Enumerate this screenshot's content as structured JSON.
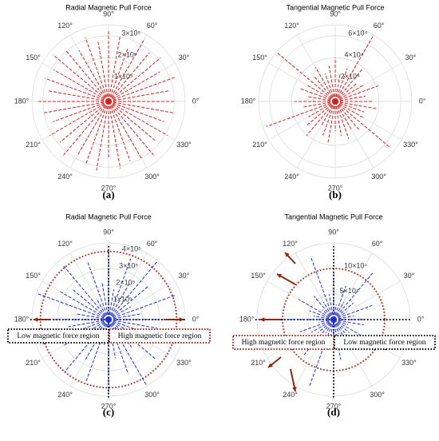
{
  "chart_data": [
    {
      "type": "polar",
      "title": "Radial Magnetic Pull Force",
      "panel_label": "(a)",
      "color": "#d62020",
      "rlim": [
        0,
        350000
      ],
      "rticks": [
        {
          "value": 100000,
          "label": "1×10⁵"
        },
        {
          "value": 200000,
          "label": "2×10⁵"
        },
        {
          "value": 300000,
          "label": "3×10⁵"
        }
      ],
      "thetaticks": [
        {
          "value": 0,
          "label": "0°"
        },
        {
          "value": 30,
          "label": "30°"
        },
        {
          "value": 60,
          "label": "60°"
        },
        {
          "value": 90,
          "label": "90°"
        },
        {
          "value": 120,
          "label": "120°"
        },
        {
          "value": 150,
          "label": "150°"
        },
        {
          "value": 180,
          "label": "180°"
        },
        {
          "value": 210,
          "label": "210°"
        },
        {
          "value": 240,
          "label": "240°"
        },
        {
          "value": 270,
          "label": "270°"
        },
        {
          "value": 300,
          "label": "300°"
        },
        {
          "value": 330,
          "label": "330°"
        }
      ],
      "theta": [
        0,
        10,
        20,
        30,
        40,
        50,
        60,
        70,
        80,
        90,
        100,
        110,
        120,
        130,
        140,
        150,
        160,
        170,
        180,
        190,
        200,
        210,
        220,
        230,
        240,
        250,
        260,
        270,
        280,
        290,
        300,
        310,
        320,
        330,
        340,
        350
      ],
      "r": [
        300000,
        280000,
        320000,
        270000,
        310000,
        290000,
        330000,
        260000,
        300000,
        320000,
        280000,
        310000,
        270000,
        300000,
        330000,
        290000,
        310000,
        280000,
        320000,
        300000,
        270000,
        310000,
        290000,
        330000,
        280000,
        300000,
        320000,
        260000,
        310000,
        290000,
        300000,
        320000,
        280000,
        310000,
        270000,
        300000
      ]
    },
    {
      "type": "polar",
      "title": "Tangential Magnetic Pull Force",
      "panel_label": "(b)",
      "color": "#d62020",
      "rlim": [
        0,
        70000
      ],
      "rticks": [
        {
          "value": 20000,
          "label": "2×10⁴"
        },
        {
          "value": 40000,
          "label": "4×10⁴"
        },
        {
          "value": 60000,
          "label": "6×10⁴"
        }
      ],
      "thetaticks": [
        {
          "value": 0,
          "label": "0°"
        },
        {
          "value": 30,
          "label": "30°"
        },
        {
          "value": 60,
          "label": "60°"
        },
        {
          "value": 90,
          "label": "90°"
        },
        {
          "value": 120,
          "label": "120°"
        },
        {
          "value": 150,
          "label": "150°"
        },
        {
          "value": 180,
          "label": "180°"
        },
        {
          "value": 210,
          "label": "210°"
        },
        {
          "value": 240,
          "label": "240°"
        },
        {
          "value": 270,
          "label": "270°"
        },
        {
          "value": 300,
          "label": "300°"
        },
        {
          "value": 330,
          "label": "330°"
        }
      ],
      "theta": [
        0,
        10,
        20,
        30,
        40,
        50,
        60,
        70,
        80,
        90,
        100,
        110,
        120,
        130,
        140,
        150,
        160,
        170,
        180,
        190,
        200,
        210,
        220,
        230,
        240,
        250,
        260,
        270,
        280,
        290,
        300,
        310,
        320,
        330,
        340,
        350
      ],
      "r": [
        35000,
        28000,
        42000,
        30000,
        25000,
        38000,
        68000,
        32000,
        26000,
        40000,
        33000,
        27000,
        36000,
        31000,
        69000,
        29000,
        34000,
        25000,
        37000,
        30000,
        67000,
        28000,
        35000,
        41000,
        26000,
        33000,
        39000,
        27000,
        32000,
        36000,
        29000,
        34000,
        66000,
        30000,
        28000,
        38000
      ]
    },
    {
      "type": "polar",
      "title": "Radial Magnetic Pull Force",
      "panel_label": "(c)",
      "color": "#2030d0",
      "rlim": [
        0,
        450000
      ],
      "rticks": [
        {
          "value": 100000,
          "label": "1×10⁵"
        },
        {
          "value": 200000,
          "label": "2×10⁵"
        },
        {
          "value": 300000,
          "label": "3×10⁵"
        },
        {
          "value": 400000,
          "label": "4×10⁵"
        }
      ],
      "thetaticks": [
        {
          "value": 0,
          "label": "0°"
        },
        {
          "value": 30,
          "label": "30°"
        },
        {
          "value": 60,
          "label": "60°"
        },
        {
          "value": 90,
          "label": "90°"
        },
        {
          "value": 120,
          "label": "120°"
        },
        {
          "value": 150,
          "label": "150°"
        },
        {
          "value": 180,
          "label": "180°"
        },
        {
          "value": 210,
          "label": "210°"
        },
        {
          "value": 240,
          "label": "240°"
        },
        {
          "value": 270,
          "label": "270°"
        },
        {
          "value": 300,
          "label": "300°"
        },
        {
          "value": 330,
          "label": "330°"
        }
      ],
      "theta": [
        0,
        10,
        20,
        30,
        40,
        50,
        60,
        70,
        80,
        90,
        100,
        110,
        120,
        130,
        140,
        150,
        160,
        170,
        180,
        190,
        200,
        210,
        220,
        230,
        240,
        250,
        260,
        270,
        280,
        290,
        300,
        310,
        320,
        330,
        340,
        350
      ],
      "r": [
        350000,
        200000,
        420000,
        150000,
        300000,
        440000,
        250000,
        380000,
        180000,
        430000,
        220000,
        360000,
        140000,
        410000,
        280000,
        330000,
        440000,
        190000,
        370000,
        240000,
        420000,
        310000,
        160000,
        400000,
        270000,
        390000,
        150000,
        430000,
        230000,
        340000,
        440000,
        210000,
        360000,
        170000,
        410000,
        290000
      ],
      "reference_circle": 400000,
      "regions": [
        {
          "label": "Low magnetic force region",
          "side": "left",
          "color": "#000000"
        },
        {
          "label": "High magnetic force region",
          "side": "right",
          "color": "#a0281e"
        }
      ]
    },
    {
      "type": "polar",
      "title": "Tangential Magnetic Pull Force",
      "panel_label": "(d)",
      "color": "#2030d0",
      "rlim": [
        0,
        150000
      ],
      "rticks": [
        {
          "value": 50000,
          "label": "5×10⁴"
        },
        {
          "value": 100000,
          "label": "10×10⁴"
        }
      ],
      "thetaticks": [
        {
          "value": 0,
          "label": "0°"
        },
        {
          "value": 30,
          "label": "30°"
        },
        {
          "value": 60,
          "label": "60°"
        },
        {
          "value": 90,
          "label": "90°"
        },
        {
          "value": 120,
          "label": "120°"
        },
        {
          "value": 150,
          "label": "150°"
        },
        {
          "value": 180,
          "label": "180°"
        },
        {
          "value": 210,
          "label": "210°"
        },
        {
          "value": 240,
          "label": "240°"
        },
        {
          "value": 270,
          "label": "270°"
        },
        {
          "value": 300,
          "label": "300°"
        },
        {
          "value": 330,
          "label": "330°"
        }
      ],
      "theta": [
        0,
        10,
        20,
        30,
        40,
        50,
        60,
        70,
        80,
        90,
        100,
        110,
        120,
        130,
        140,
        150,
        160,
        170,
        180,
        190,
        200,
        210,
        220,
        230,
        240,
        250,
        260,
        270,
        280,
        290,
        300,
        310,
        320,
        330,
        340,
        350
      ],
      "r": [
        60000,
        40000,
        80000,
        30000,
        50000,
        120000,
        40000,
        70000,
        30000,
        90000,
        50000,
        130000,
        40000,
        60000,
        30000,
        80000,
        50000,
        40000,
        110000,
        30000,
        70000,
        50000,
        40000,
        90000,
        30000,
        140000,
        60000,
        40000,
        80000,
        30000,
        50000,
        70000,
        40000,
        120000,
        30000,
        60000
      ],
      "reference_circle": 100000,
      "regions": [
        {
          "label": "High magnetic force region",
          "side": "left",
          "color": "#a0281e"
        },
        {
          "label": "Low magnetic force region",
          "side": "right",
          "color": "#000000"
        }
      ]
    }
  ]
}
